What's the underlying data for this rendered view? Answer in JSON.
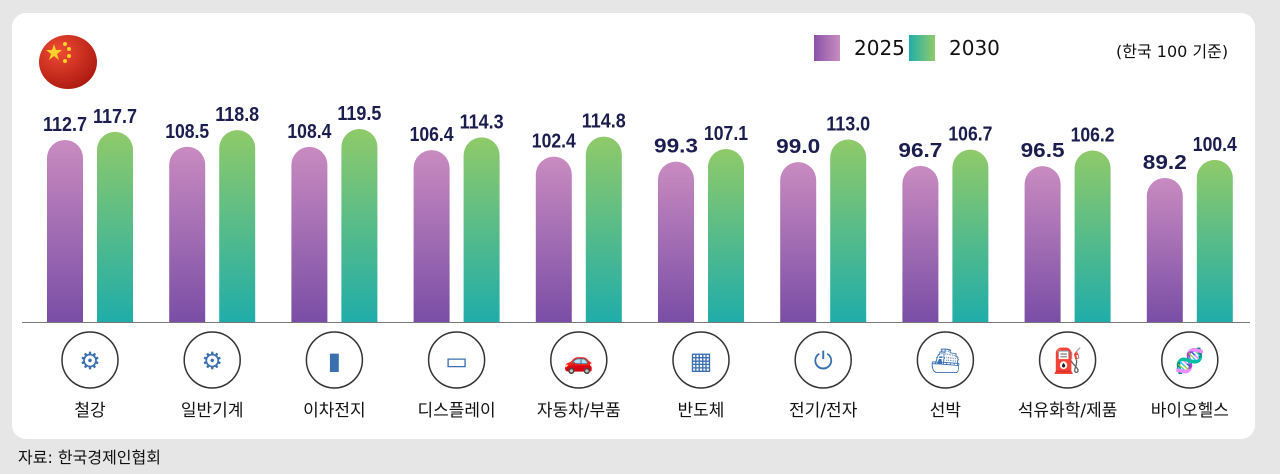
{
  "colors": {
    "c2025_top": "#c98bc0",
    "c2025_bottom": "#7a4ea6",
    "c2030_top": "#8fca69",
    "c2030_bottom": "#20ada9",
    "flag": "#d22d1e"
  },
  "unit_note": "(한국 100 기준)",
  "source": "자료: 한국경제인협회",
  "chart_data": {
    "type": "bar",
    "categories": [
      "철강",
      "일반기계",
      "이차전지",
      "디스플레이",
      "자동차/부품",
      "반도체",
      "전기/전자",
      "선박",
      "석유화학/제품",
      "바이오헬스"
    ],
    "category_icons": [
      "steel-grinder-icon",
      "gears-icon",
      "battery-icon",
      "display-devices-icon",
      "car-icon",
      "chip-icon",
      "plug-icon",
      "ship-icon",
      "oil-can-icon",
      "dna-molecule-icon"
    ],
    "series": [
      {
        "name": "2025",
        "values": [
          112.7,
          108.5,
          108.4,
          106.4,
          102.4,
          99.3,
          99.0,
          96.7,
          96.5,
          89.2
        ]
      },
      {
        "name": "2030",
        "values": [
          117.7,
          118.8,
          119.5,
          114.3,
          114.8,
          107.1,
          113.0,
          106.7,
          106.2,
          100.4
        ]
      }
    ],
    "data_labels": true,
    "legend": "top-right",
    "ylim": [
      0,
      125
    ],
    "grid": false
  }
}
